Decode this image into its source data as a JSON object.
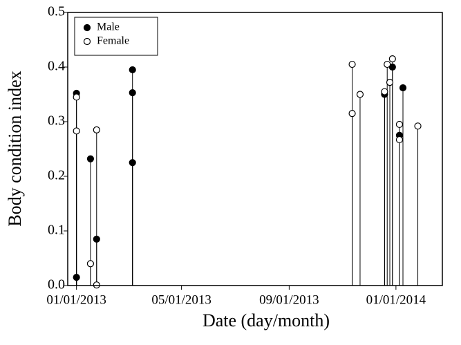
{
  "chart_data": {
    "type": "scatter",
    "xlabel": "Date (day/month)",
    "ylabel": "Body condition index",
    "xlim": [
      "2012-12-22",
      "2014-02-23"
    ],
    "xticks": [
      {
        "value": "2013-01-01",
        "label": "01/01/2013"
      },
      {
        "value": "2013-05-01",
        "label": "05/01/2013"
      },
      {
        "value": "2013-09-01",
        "label": "09/01/2013"
      },
      {
        "value": "2014-01-01",
        "label": "01/01/2014"
      }
    ],
    "ylim": [
      0,
      0.5
    ],
    "yticks": [
      {
        "value": 0,
        "label": "0.0"
      },
      0.1,
      0.2,
      0.3,
      0.4,
      0.5
    ],
    "legend": "upper left",
    "stems": true,
    "series": [
      {
        "name": "Male",
        "color": "#000000",
        "fill": "filled",
        "x": [
          "2013-01-01",
          "2013-01-01",
          "2013-01-17",
          "2013-01-24",
          "2013-03-06",
          "2013-03-06",
          "2013-03-06",
          "2013-12-19",
          "2013-12-28",
          "2014-01-05",
          "2014-01-09"
        ],
        "values": [
          0.352,
          0.015,
          0.232,
          0.085,
          0.395,
          0.353,
          0.225,
          0.35,
          0.4,
          0.275,
          0.362
        ]
      },
      {
        "name": "Female",
        "color": "#000000",
        "fill": "open",
        "x": [
          "2013-01-01",
          "2013-01-01",
          "2013-01-17",
          "2013-01-24",
          "2013-01-24",
          "2013-11-12",
          "2013-11-12",
          "2013-11-21",
          "2013-12-19",
          "2013-12-22",
          "2013-12-25",
          "2013-12-28",
          "2014-01-05",
          "2014-01-05",
          "2014-01-26"
        ],
        "values": [
          0.345,
          0.283,
          0.04,
          0.285,
          0.001,
          0.405,
          0.315,
          0.35,
          0.355,
          0.405,
          0.372,
          0.415,
          0.295,
          0.267,
          0.292
        ]
      }
    ]
  }
}
